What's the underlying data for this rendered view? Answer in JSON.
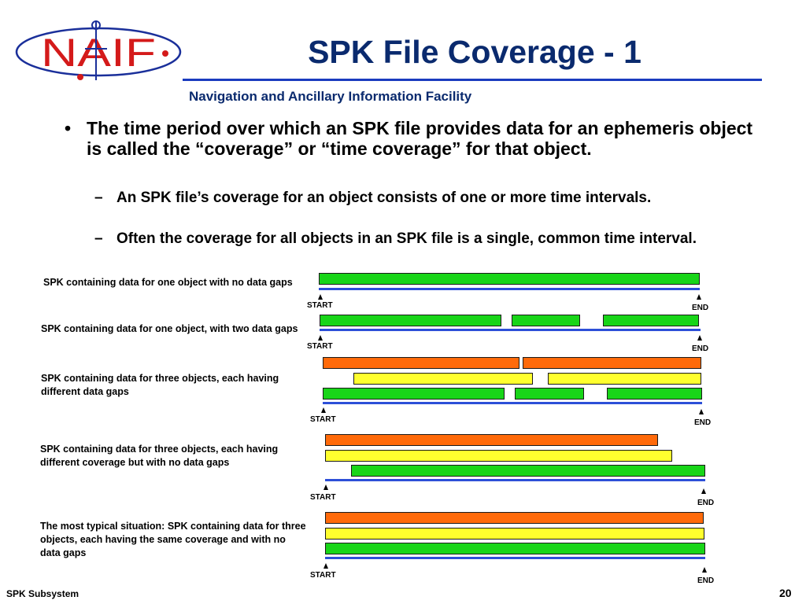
{
  "logo": {
    "text": "NAIF"
  },
  "title": "SPK File Coverage - 1",
  "subtitle": "Navigation and Ancillary Information Facility",
  "bullet": "The time period over which an SPK file provides data for an ephemeris object is called the “coverage” or “time coverage” for that object.",
  "subbullets": [
    "An SPK file’s coverage for an object consists of one or more time intervals.",
    "Often the coverage for all objects in an SPK file is a single, common time interval."
  ],
  "diagrams": [
    {
      "description": "SPK containing data for one object with no data gaps",
      "start_label": "START",
      "end_label": "END"
    },
    {
      "description": "SPK containing data for one object, with two data gaps",
      "start_label": "START",
      "end_label": "END"
    },
    {
      "description": "SPK containing data for three objects, each having different data gaps",
      "start_label": "START",
      "end_label": "END"
    },
    {
      "description": "SPK containing data for three objects, each having different coverage but with no data gaps",
      "start_label": "START",
      "end_label": "END"
    },
    {
      "description": "The most typical situation: SPK containing data for three objects, each  having the same coverage and with no data gaps",
      "start_label": "START",
      "end_label": "END"
    }
  ],
  "colors": {
    "object_1": "#18d518",
    "object_2": "#ffff2e",
    "object_3": "#ff6a0a",
    "axis": "#2d4fd8",
    "title": "#0a2a6e"
  },
  "footer": {
    "left": "SPK Subsystem",
    "page": "20"
  }
}
